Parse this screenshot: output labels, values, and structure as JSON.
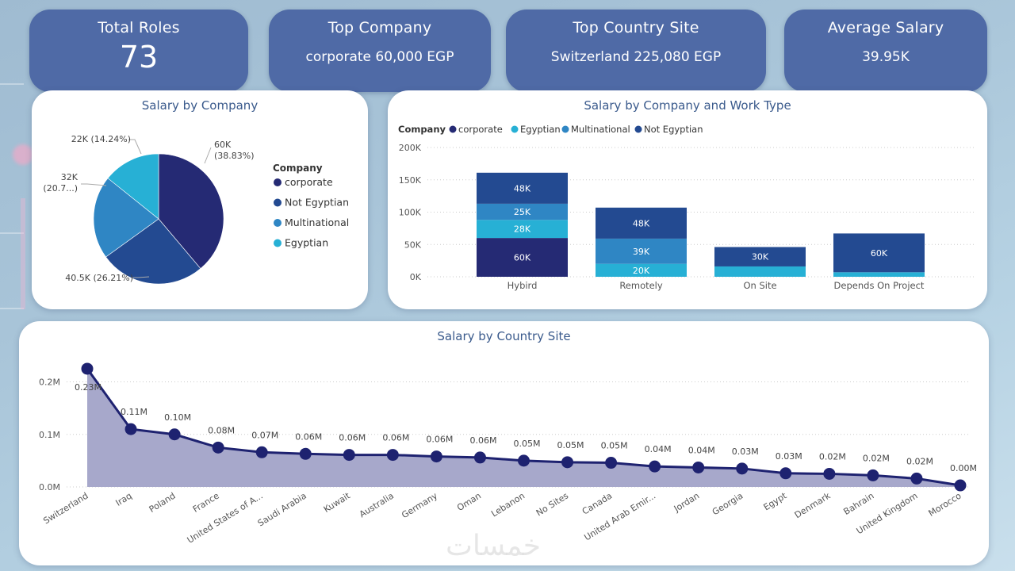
{
  "kpis": [
    {
      "title": "Total Roles",
      "value": "73"
    },
    {
      "title": "Top Company",
      "value": "corporate 60,000 EGP"
    },
    {
      "title": "Top Country Site",
      "value": "Switzerland 225,080 EGP"
    },
    {
      "title": "Average Salary",
      "value": "39.95K"
    }
  ],
  "colors": {
    "corporate": "#252a74",
    "Not Egyptian": "#234a91",
    "Multinational": "#2f86c4",
    "Egyptian": "#27b0d5",
    "kpi_bg": "#4f6aa6",
    "title": "#3a5a8c",
    "line": "#1e2270",
    "area": "#a7a8cb"
  },
  "watermark": "خمسات",
  "chart_data": [
    {
      "type": "pie",
      "title": "Salary by Company",
      "legend_title": "Company",
      "legend_position": "right",
      "slices": [
        {
          "label": "corporate",
          "value": 60000,
          "data_label": "60K",
          "pct_label": "(38.83%)"
        },
        {
          "label": "Not Egyptian",
          "value": 40500,
          "data_label": "40.5K (26.21%)",
          "pct_label": ""
        },
        {
          "label": "Multinational",
          "value": 32000,
          "data_label": "32K",
          "pct_label": "(20.7...)"
        },
        {
          "label": "Egyptian",
          "value": 22000,
          "data_label": "22K (14.24%)",
          "pct_label": ""
        }
      ]
    },
    {
      "type": "bar",
      "stacked": true,
      "title": "Salary by Company and Work Type",
      "legend_title": "Company",
      "legend_position": "top-left",
      "legend": [
        "corporate",
        "Egyptian",
        "Multinational",
        "Not Egyptian"
      ],
      "categories": [
        "Hybird",
        "Remotely",
        "On Site",
        "Depends On Project"
      ],
      "yticks": [
        "0K",
        "50K",
        "100K",
        "150K",
        "200K"
      ],
      "ylim": [
        0,
        200000
      ],
      "grid": true,
      "series": [
        {
          "name": "corporate",
          "values": [
            60000,
            0,
            0,
            0
          ],
          "labels": [
            "60K",
            "",
            "",
            ""
          ]
        },
        {
          "name": "Egyptian",
          "values": [
            28000,
            20000,
            16000,
            7000
          ],
          "labels": [
            "28K",
            "20K",
            "",
            ""
          ]
        },
        {
          "name": "Multinational",
          "values": [
            25000,
            39000,
            0,
            0
          ],
          "labels": [
            "25K",
            "39K",
            "",
            ""
          ]
        },
        {
          "name": "Not Egyptian",
          "values": [
            48000,
            48000,
            30000,
            60000
          ],
          "labels": [
            "48K",
            "48K",
            "30K",
            "60K"
          ]
        }
      ]
    },
    {
      "type": "area",
      "title": "Salary by Country Site",
      "yticks": [
        "0.0M",
        "0.1M",
        "0.2M"
      ],
      "ylim": [
        0,
        0.24
      ],
      "grid": true,
      "x": [
        "Switzerland",
        "Iraq",
        "Poland",
        "France",
        "United States of A...",
        "Saudi Arabia",
        "Kuwait",
        "Australia",
        "Germany",
        "Oman",
        "Lebanon",
        "No Sites",
        "Canada",
        "United Arab Emir...",
        "Jordan",
        "Georgia",
        "Egypt",
        "Denmark",
        "Bahrain",
        "United Kingdom",
        "Morocco"
      ],
      "values": [
        0.225,
        0.11,
        0.1,
        0.075,
        0.066,
        0.063,
        0.061,
        0.061,
        0.058,
        0.056,
        0.05,
        0.047,
        0.046,
        0.039,
        0.037,
        0.035,
        0.026,
        0.025,
        0.022,
        0.016,
        0.003
      ],
      "labels": [
        "0.23M",
        "0.11M",
        "0.10M",
        "0.08M",
        "0.07M",
        "0.06M",
        "0.06M",
        "0.06M",
        "0.06M",
        "0.06M",
        "0.05M",
        "0.05M",
        "0.05M",
        "0.04M",
        "0.04M",
        "0.03M",
        "0.03M",
        "0.02M",
        "0.02M",
        "0.02M",
        "0.00M"
      ]
    }
  ]
}
